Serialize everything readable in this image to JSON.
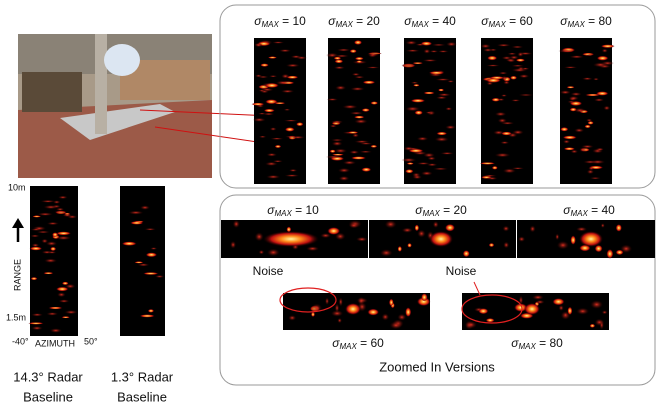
{
  "photo_panel": {
    "range_top": "10m",
    "range_label": "RANGE",
    "range_bottom": "1.5m",
    "azimuth_left": "-40°",
    "azimuth_label": "AZIMUTH",
    "azimuth_right": "50°",
    "baselines": [
      {
        "line1": "14.3° Radar",
        "line2": "Baseline"
      },
      {
        "line1": "1.3° Radar",
        "line2": "Baseline"
      }
    ]
  },
  "top_panel": {
    "labels": [
      {
        "symbol": "σ",
        "sub": "MAX",
        "rest": " = 10"
      },
      {
        "symbol": "σ",
        "sub": "MAX",
        "rest": " = 20"
      },
      {
        "symbol": "σ",
        "sub": "MAX",
        "rest": " = 40"
      },
      {
        "symbol": "σ",
        "sub": "MAX",
        "rest": " = 60"
      },
      {
        "symbol": "σ",
        "sub": "MAX",
        "rest": " = 80"
      }
    ]
  },
  "zoom_panel": {
    "row1": [
      {
        "symbol": "σ",
        "sub": "MAX",
        "rest": " = 10"
      },
      {
        "symbol": "σ",
        "sub": "MAX",
        "rest": " = 20"
      },
      {
        "symbol": "σ",
        "sub": "MAX",
        "rest": " = 40"
      }
    ],
    "row2": [
      {
        "symbol": "σ",
        "sub": "MAX",
        "rest": " = 60"
      },
      {
        "symbol": "σ",
        "sub": "MAX",
        "rest": " = 80"
      }
    ],
    "noise_labels": [
      "Noise",
      "Noise"
    ],
    "caption": "Zoomed In Versions"
  }
}
